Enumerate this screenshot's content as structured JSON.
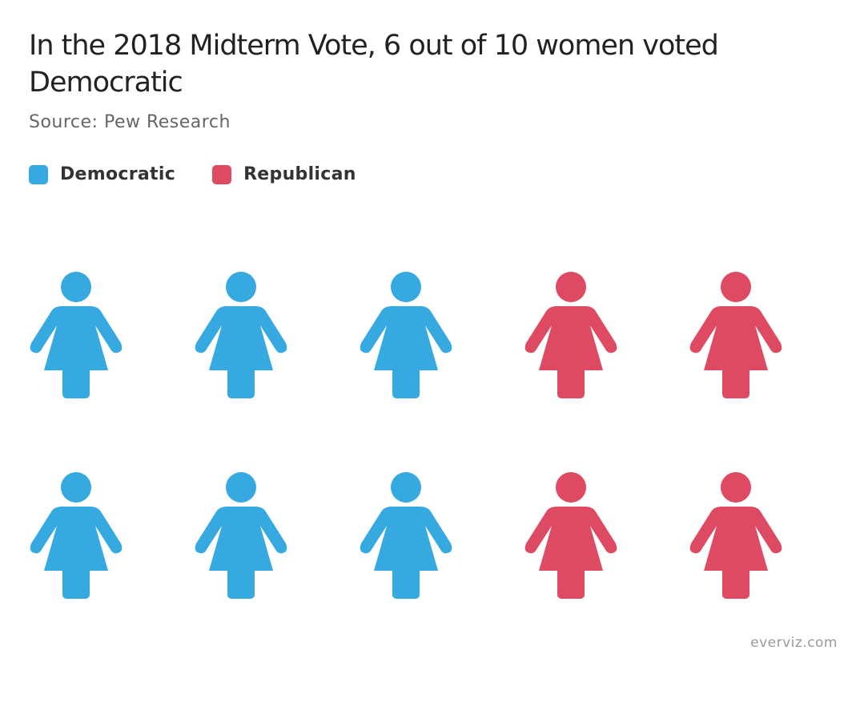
{
  "chart_data": {
    "type": "pictorial",
    "title": "In the 2018 Midterm Vote, 6 out of 10 women voted Democratic",
    "subtitle": "Source: Pew Research",
    "icon": "woman-icon",
    "total_icons": 10,
    "rows": 2,
    "columns": 5,
    "series": [
      {
        "name": "Democratic",
        "value": 6,
        "color": "#36a9e1"
      },
      {
        "name": "Republican",
        "value": 4,
        "color": "#de4a62"
      }
    ],
    "legend_position": "top-left",
    "grid": false
  },
  "credit": "everviz.com"
}
